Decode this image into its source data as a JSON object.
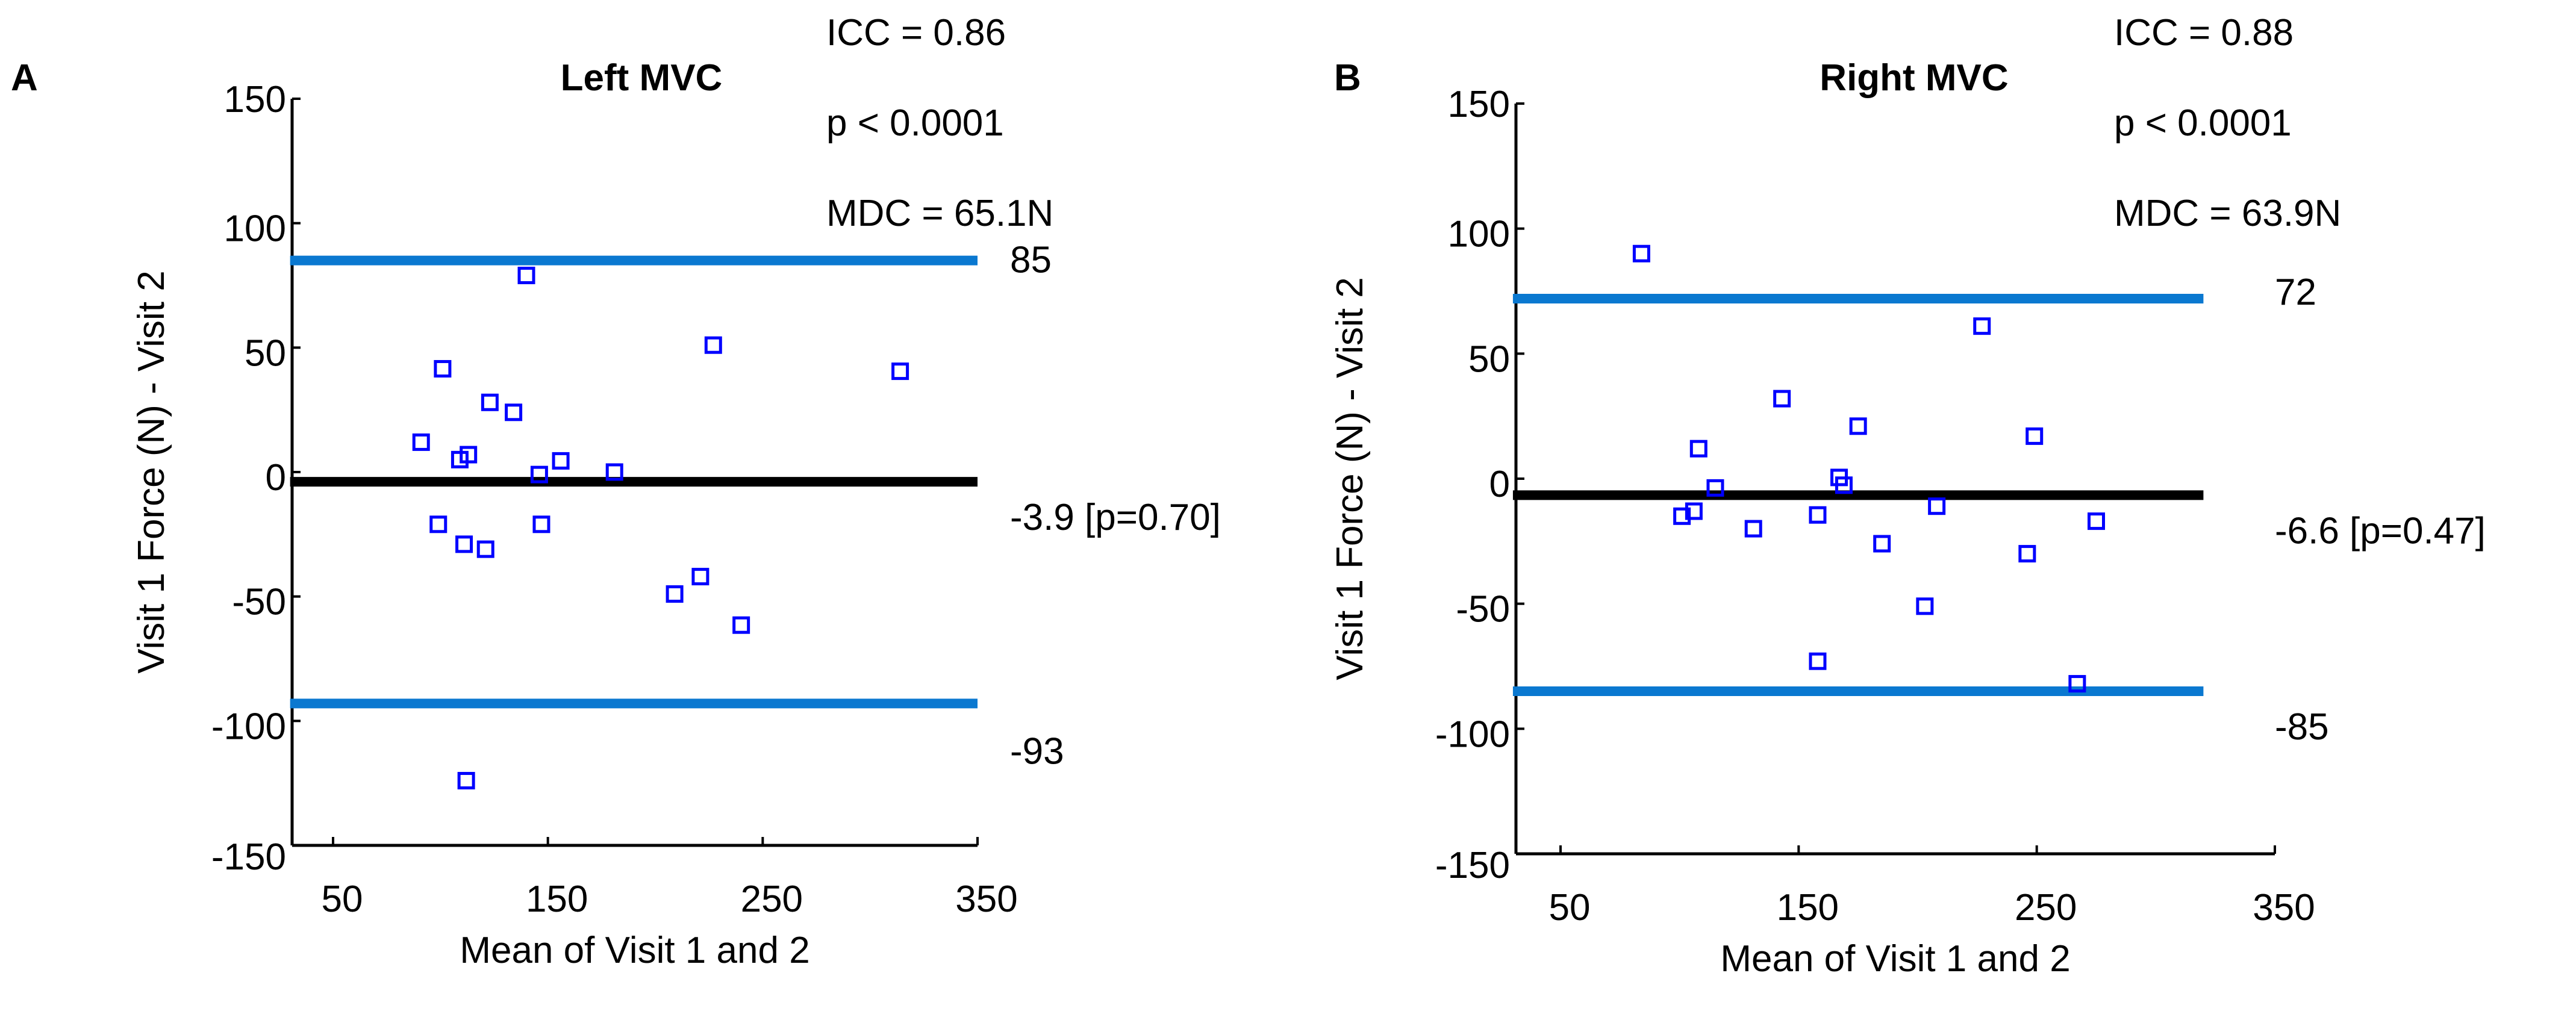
{
  "colors": {
    "limit_line": "#0a78d0",
    "mean_line": "#000000",
    "marker": "#0000ff"
  },
  "chart_data": [
    {
      "type": "scatter",
      "panel_label": "A",
      "title": "Left MVC",
      "xlabel": "Mean of Visit 1 and 2",
      "ylabel": "Visit 1 Force (N) - Visit 2",
      "xlim": [
        30,
        350
      ],
      "ylim": [
        -150,
        150
      ],
      "xticks": [
        50,
        150,
        250,
        350
      ],
      "yticks": [
        150,
        100,
        50,
        0,
        -50,
        -100,
        -150
      ],
      "annotations": [
        "ICC = 0.86",
        "p < 0.0001",
        "MDC = 65.1N"
      ],
      "lines": [
        {
          "role": "upper-limit",
          "y": 85,
          "label": "85",
          "x_end": 350
        },
        {
          "role": "mean-bias",
          "y": -3.9,
          "label": "-3.9 [p=0.70]",
          "x_end": 350
        },
        {
          "role": "lower-limit",
          "y": -93,
          "label": "-93",
          "x_end": 350
        }
      ],
      "points": [
        [
          140,
          79
        ],
        [
          227,
          51
        ],
        [
          314,
          40.5
        ],
        [
          101,
          41.5
        ],
        [
          123,
          28
        ],
        [
          134,
          24
        ],
        [
          91,
          12
        ],
        [
          109,
          5
        ],
        [
          113,
          7
        ],
        [
          156,
          4.5
        ],
        [
          146,
          -1
        ],
        [
          181,
          0
        ],
        [
          99,
          -21
        ],
        [
          111,
          -29
        ],
        [
          121,
          -31
        ],
        [
          147,
          -21
        ],
        [
          209,
          -49
        ],
        [
          221,
          -42
        ],
        [
          240,
          -61.5
        ],
        [
          112,
          -124
        ]
      ]
    },
    {
      "type": "scatter",
      "panel_label": "B",
      "title": "Right MVC",
      "xlabel": "Mean of Visit 1 and 2",
      "ylabel": "Visit 1 Force (N) - Visit 2",
      "xlim": [
        30,
        350
      ],
      "ylim": [
        -150,
        150
      ],
      "xticks": [
        50,
        150,
        250,
        350
      ],
      "yticks": [
        150,
        100,
        50,
        0,
        -50,
        -100,
        -150
      ],
      "annotations": [
        "ICC = 0.88",
        "p < 0.0001",
        "MDC = 63.9N"
      ],
      "lines": [
        {
          "role": "upper-limit",
          "y": 72,
          "label": "72",
          "x_end": 320
        },
        {
          "role": "mean-bias",
          "y": -6.6,
          "label": "-6.6 [p=0.47]",
          "x_end": 320
        },
        {
          "role": "lower-limit",
          "y": -85,
          "label": "-85",
          "x_end": 320
        }
      ],
      "points": [
        [
          84,
          90
        ],
        [
          227,
          61
        ],
        [
          143,
          32
        ],
        [
          175,
          21
        ],
        [
          108,
          12
        ],
        [
          249,
          17
        ],
        [
          115,
          -3.7
        ],
        [
          167,
          0.5
        ],
        [
          169,
          -2.6
        ],
        [
          101,
          -15
        ],
        [
          106,
          -13
        ],
        [
          158,
          -14.5
        ],
        [
          131,
          -20
        ],
        [
          208,
          -11
        ],
        [
          185,
          -26
        ],
        [
          275,
          -17
        ],
        [
          246,
          -30
        ],
        [
          203,
          -51
        ],
        [
          158,
          -73
        ],
        [
          267,
          -82
        ]
      ]
    }
  ]
}
